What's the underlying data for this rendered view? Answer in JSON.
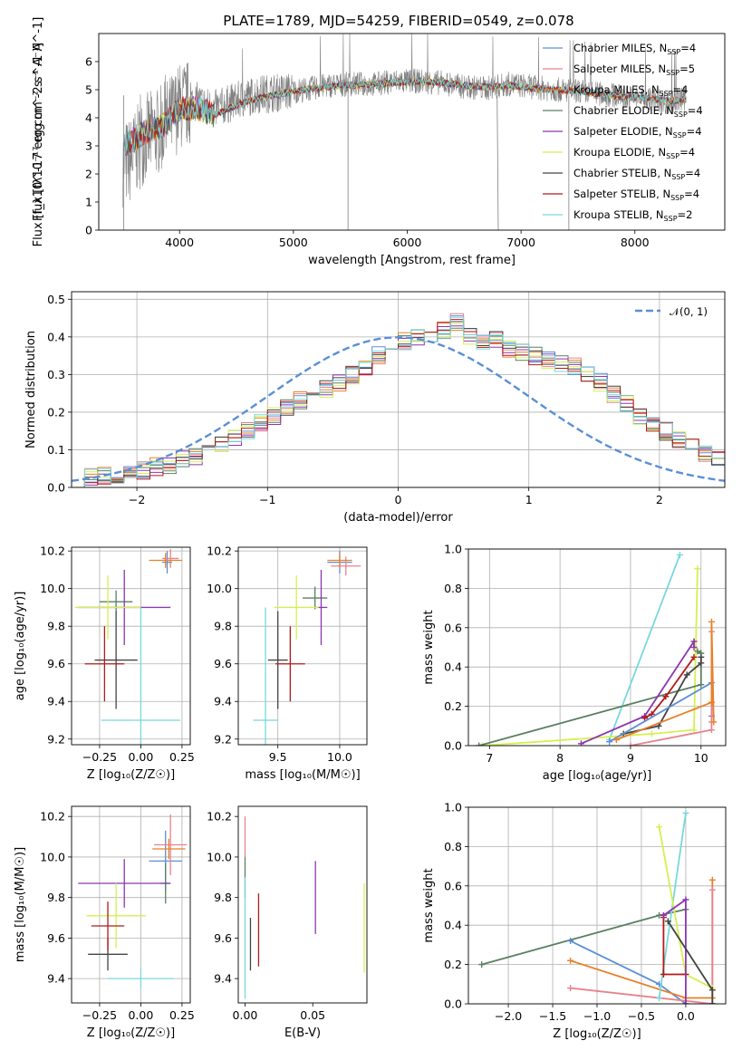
{
  "figure_title": "PLATE=1789, MJD=54259, FIBERID=0549, z=0.078",
  "colors": {
    "chabrier_miles": "#5b8fd6",
    "salpeter_miles": "#e8828c",
    "kroupa_miles": "#e8802a",
    "chabrier_elodie": "#5a8060",
    "salpeter_elodie": "#8e35b0",
    "kroupa_elodie": "#d4f050",
    "chabrier_stelib": "#444444",
    "salpeter_stelib": "#b21a1a",
    "kroupa_stelib": "#78d8dc",
    "data_gray": "#808080"
  },
  "chart_data": [
    {
      "id": "spectrum",
      "type": "line",
      "title": "PLATE=1789, MJD=54259, FIBERID=0549, z=0.078",
      "xlabel": "wavelength [Angstrom, rest frame]",
      "ylabel": "Flux [f_λ10^-17 erg cm^-2 s^-1 A^-1]",
      "xlim": [
        3290,
        8790
      ],
      "ylim": [
        0,
        7
      ],
      "xticks": [
        4000,
        5000,
        6000,
        7000,
        8000
      ],
      "yticks": [
        0,
        1,
        2,
        3,
        4,
        5,
        6
      ],
      "grid": false,
      "legend_position": "top-right",
      "x": [
        3550,
        3700,
        3850,
        4000,
        4150,
        4300,
        4500,
        4700,
        4900,
        5100,
        5300,
        5500,
        5700,
        5900,
        6100,
        6300,
        6500,
        6700,
        6900,
        7100,
        7300,
        7500,
        7700,
        7900,
        8100,
        8300,
        8450
      ],
      "data_flux": [
        2.4,
        3.3,
        3.6,
        4.4,
        4.6,
        4.3,
        4.6,
        4.85,
        4.9,
        5.0,
        5.15,
        5.2,
        5.2,
        5.3,
        5.3,
        5.25,
        5.1,
        5.05,
        5.2,
        5.1,
        5.0,
        4.95,
        4.85,
        4.75,
        4.7,
        4.55,
        4.7
      ],
      "model_flux": [
        3.1,
        3.5,
        3.7,
        4.3,
        4.35,
        4.1,
        4.45,
        4.7,
        4.85,
        5.0,
        5.1,
        5.15,
        5.2,
        5.25,
        5.3,
        5.25,
        5.15,
        5.1,
        5.15,
        5.05,
        5.0,
        4.95,
        4.85,
        4.75,
        4.7,
        4.6,
        4.65
      ],
      "series": [
        {
          "name": "Chabrier MILES, N_SSP=4",
          "label_main": "Chabrier MILES, N",
          "label_sub": "SSP",
          "label_tail": "=4",
          "color_key": "chabrier_miles"
        },
        {
          "name": "Salpeter MILES, N_SSP=5",
          "label_main": "Salpeter MILES, N",
          "label_sub": "SSP",
          "label_tail": "=5",
          "color_key": "salpeter_miles"
        },
        {
          "name": "Kroupa MILES, N_SSP=4",
          "label_main": "Kroupa MILES, N",
          "label_sub": "SSP",
          "label_tail": "=4",
          "color_key": "kroupa_miles"
        },
        {
          "name": "Chabrier ELODIE, N_SSP=4",
          "label_main": "Chabrier ELODIE, N",
          "label_sub": "SSP",
          "label_tail": "=4",
          "color_key": "chabrier_elodie"
        },
        {
          "name": "Salpeter ELODIE, N_SSP=4",
          "label_main": "Salpeter ELODIE, N",
          "label_sub": "SSP",
          "label_tail": "=4",
          "color_key": "salpeter_elodie"
        },
        {
          "name": "Kroupa ELODIE, N_SSP=4",
          "label_main": "Kroupa ELODIE, N",
          "label_sub": "SSP",
          "label_tail": "=4",
          "color_key": "kroupa_elodie"
        },
        {
          "name": "Chabrier STELIB, N_SSP=4",
          "label_main": "Chabrier STELIB, N",
          "label_sub": "SSP",
          "label_tail": "=4",
          "color_key": "chabrier_stelib"
        },
        {
          "name": "Salpeter STELIB, N_SSP=4",
          "label_main": "Salpeter STELIB, N",
          "label_sub": "SSP",
          "label_tail": "=4",
          "color_key": "salpeter_stelib"
        },
        {
          "name": "Kroupa STELIB, N_SSP=2",
          "label_main": "Kroupa STELIB, N",
          "label_sub": "SSP",
          "label_tail": "=2",
          "color_key": "kroupa_stelib"
        }
      ]
    },
    {
      "id": "residuals",
      "type": "line",
      "xlabel": "(data-model)/error",
      "ylabel": "Normed distribution",
      "xlim": [
        -2.5,
        2.5
      ],
      "ylim": [
        0,
        0.52
      ],
      "xticks": [
        -2,
        -1,
        0,
        1,
        2
      ],
      "yticks": [
        0.0,
        0.1,
        0.2,
        0.3,
        0.4,
        0.5
      ],
      "grid": true,
      "legend_position": "top-right",
      "legend_label": "𝒩(0, 1)",
      "gaussian_color": "#5b8fd6",
      "bin_width": 0.1,
      "bin_start": -2.5,
      "hist": [
        0.02,
        0.025,
        0.03,
        0.035,
        0.04,
        0.045,
        0.055,
        0.06,
        0.075,
        0.085,
        0.1,
        0.11,
        0.13,
        0.15,
        0.17,
        0.19,
        0.21,
        0.23,
        0.24,
        0.26,
        0.28,
        0.3,
        0.32,
        0.35,
        0.37,
        0.39,
        0.4,
        0.41,
        0.42,
        0.44,
        0.4,
        0.38,
        0.39,
        0.37,
        0.36,
        0.35,
        0.34,
        0.33,
        0.32,
        0.3,
        0.28,
        0.25,
        0.22,
        0.19,
        0.17,
        0.15,
        0.13,
        0.11,
        0.09,
        0.08,
        0.07,
        0.06,
        0.05,
        0.045,
        0.04,
        0.035,
        0.03,
        0.03,
        0.025,
        0.02
      ]
    },
    {
      "id": "age_vs_Z",
      "type": "scatter",
      "xlabel": "Z [log10(Z/Z☉)]",
      "ylabel": "age [log10(age/yr)]",
      "xlim": [
        -0.42,
        0.3
      ],
      "ylim": [
        9.17,
        10.22
      ],
      "xticks": [
        -0.25,
        0.0,
        0.25
      ],
      "yticks": [
        9.2,
        9.4,
        9.6,
        9.8,
        10.0,
        10.2
      ],
      "grid": true,
      "points": [
        {
          "color_key": "chabrier_miles",
          "x": 0.16,
          "y": 10.14,
          "xerr": 0.03,
          "yerr": 0.06
        },
        {
          "color_key": "salpeter_miles",
          "x": 0.18,
          "y": 10.16,
          "xerr": 0.05,
          "yerr": 0.05
        },
        {
          "color_key": "kroupa_miles",
          "x": 0.15,
          "y": 10.15,
          "xerr": 0.1,
          "yerr": 0.04
        },
        {
          "color_key": "chabrier_elodie",
          "x": -0.15,
          "y": 9.93,
          "xerr": 0.1,
          "yerr": 0.06
        },
        {
          "color_key": "salpeter_elodie",
          "x": -0.1,
          "y": 9.9,
          "xerr": 0.28,
          "yerr": 0.2
        },
        {
          "color_key": "kroupa_elodie",
          "x": -0.2,
          "y": 9.9,
          "xerr": 0.2,
          "yerr": 0.17
        },
        {
          "color_key": "chabrier_stelib",
          "x": -0.15,
          "y": 9.62,
          "xerr": 0.13,
          "yerr": 0.26
        },
        {
          "color_key": "salpeter_stelib",
          "x": -0.22,
          "y": 9.6,
          "xerr": 0.12,
          "yerr": 0.2
        },
        {
          "color_key": "kroupa_stelib",
          "x": 0.0,
          "y": 9.3,
          "xerr": 0.24,
          "yerr": 0.6
        }
      ]
    },
    {
      "id": "age_vs_mass",
      "type": "scatter",
      "xlabel": "mass [log10(M/M☉)]",
      "ylabel": "",
      "xlim": [
        9.18,
        10.22
      ],
      "ylim": [
        9.17,
        10.22
      ],
      "xticks": [
        9.5,
        10.0
      ],
      "yticks": [
        9.2,
        9.4,
        9.6,
        9.8,
        10.0,
        10.2
      ],
      "grid": true,
      "points": [
        {
          "color_key": "chabrier_miles",
          "x": 10.0,
          "y": 10.14,
          "xerr": 0.1,
          "yerr": 0.06
        },
        {
          "color_key": "salpeter_miles",
          "x": 10.05,
          "y": 10.12,
          "xerr": 0.12,
          "yerr": 0.05
        },
        {
          "color_key": "kroupa_miles",
          "x": 10.0,
          "y": 10.15,
          "xerr": 0.1,
          "yerr": 0.04
        },
        {
          "color_key": "chabrier_elodie",
          "x": 9.8,
          "y": 9.95,
          "xerr": 0.1,
          "yerr": 0.06
        },
        {
          "color_key": "salpeter_elodie",
          "x": 9.85,
          "y": 9.9,
          "xerr": 0.05,
          "yerr": 0.2
        },
        {
          "color_key": "kroupa_elodie",
          "x": 9.65,
          "y": 9.9,
          "xerr": 0.18,
          "yerr": 0.17
        },
        {
          "color_key": "chabrier_stelib",
          "x": 9.5,
          "y": 9.62,
          "xerr": 0.08,
          "yerr": 0.26
        },
        {
          "color_key": "salpeter_stelib",
          "x": 9.6,
          "y": 9.6,
          "xerr": 0.12,
          "yerr": 0.2
        },
        {
          "color_key": "kroupa_stelib",
          "x": 9.4,
          "y": 9.3,
          "xerr": 0.1,
          "yerr": 0.6
        }
      ]
    },
    {
      "id": "massweight_vs_age",
      "type": "line",
      "xlabel": "age [log10(age/yr)]",
      "ylabel": "mass weight",
      "xlim": [
        6.7,
        10.35
      ],
      "ylim": [
        0,
        1.0
      ],
      "xticks": [
        7,
        8,
        9,
        10
      ],
      "yticks": [
        0.0,
        0.2,
        0.4,
        0.6,
        0.8,
        1.0
      ],
      "grid": true,
      "series": [
        {
          "color_key": "kroupa_stelib",
          "x": [
            8.7,
            9.7
          ],
          "y": [
            0.03,
            0.97
          ]
        },
        {
          "color_key": "kroupa_elodie",
          "x": [
            6.9,
            9.3,
            9.9,
            9.95
          ],
          "y": [
            0.0,
            0.06,
            0.08,
            0.9
          ]
        },
        {
          "color_key": "chabrier_elodie",
          "x": [
            6.85,
            10.0,
            10.0,
            9.95
          ],
          "y": [
            0.0,
            0.31,
            0.47,
            0.48
          ]
        },
        {
          "color_key": "chabrier_stelib",
          "x": [
            8.9,
            9.4,
            9.8,
            10.0,
            10.0
          ],
          "y": [
            0.06,
            0.1,
            0.36,
            0.42,
            0.45
          ]
        },
        {
          "color_key": "salpeter_elodie",
          "x": [
            8.3,
            9.2,
            9.9,
            9.9
          ],
          "y": [
            0.01,
            0.15,
            0.53,
            0.5
          ]
        },
        {
          "color_key": "salpeter_stelib",
          "x": [
            9.2,
            9.3,
            9.5,
            9.9
          ],
          "y": [
            0.14,
            0.16,
            0.25,
            0.45
          ]
        },
        {
          "color_key": "chabrier_miles",
          "x": [
            8.7,
            10.15,
            10.15
          ],
          "y": [
            0.02,
            0.32,
            0.15
          ]
        },
        {
          "color_key": "salpeter_miles",
          "x": [
            9.0,
            10.15,
            10.15,
            10.15
          ],
          "y": [
            0.0,
            0.08,
            0.58,
            0.12
          ]
        },
        {
          "color_key": "kroupa_miles",
          "x": [
            8.8,
            10.15,
            10.15,
            10.18
          ],
          "y": [
            0.03,
            0.22,
            0.63,
            0.12
          ]
        }
      ]
    },
    {
      "id": "mass_vs_Z",
      "type": "scatter",
      "xlabel": "Z [log10(Z/Z☉)]",
      "ylabel": "mass [log10(M/M☉)]",
      "xlim": [
        -0.42,
        0.3
      ],
      "ylim": [
        9.28,
        10.25
      ],
      "xticks": [
        -0.25,
        0.0,
        0.25
      ],
      "yticks": [
        9.4,
        9.6,
        9.8,
        10.0,
        10.2
      ],
      "grid": true,
      "points": [
        {
          "color_key": "chabrier_miles",
          "x": 0.15,
          "y": 9.98,
          "xerr": 0.1,
          "yerr": 0.15
        },
        {
          "color_key": "salpeter_miles",
          "x": 0.18,
          "y": 10.06,
          "xerr": 0.1,
          "yerr": 0.15
        },
        {
          "color_key": "kroupa_miles",
          "x": 0.17,
          "y": 10.04,
          "xerr": 0.1,
          "yerr": 0.05
        },
        {
          "color_key": "chabrier_elodie",
          "x": 0.15,
          "y": 9.87,
          "xerr": 0.03,
          "yerr": 0.1
        },
        {
          "color_key": "salpeter_elodie",
          "x": -0.1,
          "y": 9.87,
          "xerr": 0.28,
          "yerr": 0.12
        },
        {
          "color_key": "kroupa_elodie",
          "x": -0.15,
          "y": 9.71,
          "xerr": 0.18,
          "yerr": 0.16
        },
        {
          "color_key": "chabrier_stelib",
          "x": -0.2,
          "y": 9.52,
          "xerr": 0.12,
          "yerr": 0.08
        },
        {
          "color_key": "salpeter_stelib",
          "x": -0.2,
          "y": 9.66,
          "xerr": 0.1,
          "yerr": 0.12
        },
        {
          "color_key": "kroupa_stelib",
          "x": 0.0,
          "y": 9.4,
          "xerr": 0.2,
          "yerr": 0.05
        }
      ]
    },
    {
      "id": "mass_vs_ebv",
      "type": "scatter",
      "xlabel": "E(B-V)",
      "ylabel": "",
      "xlim": [
        -0.005,
        0.09
      ],
      "ylim": [
        9.28,
        10.25
      ],
      "xticks": [
        0.0,
        0.05
      ],
      "xtick_labels": [
        "0.00",
        "0.05"
      ],
      "yticks": [
        9.4,
        9.6,
        9.8,
        10.0,
        10.2
      ],
      "grid": false,
      "points": [
        {
          "color_key": "salpeter_miles",
          "x": 0.0,
          "y": 10.1,
          "yerr": 0.1
        },
        {
          "color_key": "chabrier_elodie",
          "x": 0.0,
          "y": 9.9,
          "yerr": 0.1
        },
        {
          "color_key": "kroupa_stelib",
          "x": 0.0,
          "y": 9.6,
          "yerr": 0.3
        },
        {
          "color_key": "chabrier_stelib",
          "x": 0.004,
          "y": 9.57,
          "yerr": 0.13
        },
        {
          "color_key": "salpeter_stelib",
          "x": 0.01,
          "y": 9.64,
          "yerr": 0.18
        },
        {
          "color_key": "salpeter_elodie",
          "x": 0.052,
          "y": 9.8,
          "yerr": 0.18
        },
        {
          "color_key": "kroupa_elodie",
          "x": 0.088,
          "y": 9.65,
          "yerr": 0.22
        }
      ]
    },
    {
      "id": "massweight_vs_Z",
      "type": "line",
      "xlabel": "Z [log10(Z/Z☉)]",
      "ylabel": "mass weight",
      "xlim": [
        -2.45,
        0.45
      ],
      "ylim": [
        0,
        1.0
      ],
      "xticks": [
        -2.0,
        -1.5,
        -1.0,
        -0.5,
        0.0
      ],
      "yticks": [
        0.0,
        0.2,
        0.4,
        0.6,
        0.8,
        1.0
      ],
      "grid": true,
      "series": [
        {
          "color_key": "chabrier_elodie",
          "x": [
            -2.3,
            -0.3,
            0.0
          ],
          "y": [
            0.2,
            0.45,
            0.48
          ]
        },
        {
          "color_key": "chabrier_miles",
          "x": [
            -1.3,
            -0.3,
            0.0
          ],
          "y": [
            0.32,
            0.1,
            0.0
          ]
        },
        {
          "color_key": "kroupa_miles",
          "x": [
            -1.3,
            0.0,
            0.3,
            0.3
          ],
          "y": [
            0.22,
            0.03,
            0.03,
            0.63
          ]
        },
        {
          "color_key": "salpeter_miles",
          "x": [
            -1.3,
            0.3,
            0.3
          ],
          "y": [
            0.08,
            0.0,
            0.58
          ]
        },
        {
          "color_key": "kroupa_stelib",
          "x": [
            -0.3,
            0.0
          ],
          "y": [
            0.03,
            0.97
          ]
        },
        {
          "color_key": "kroupa_elodie",
          "x": [
            -0.3,
            0.0,
            0.3
          ],
          "y": [
            0.9,
            0.15,
            0.08
          ]
        },
        {
          "color_key": "salpeter_stelib",
          "x": [
            -0.25,
            -0.25,
            0.0
          ],
          "y": [
            0.44,
            0.15,
            0.15
          ]
        },
        {
          "color_key": "salpeter_elodie",
          "x": [
            -0.25,
            0.0,
            0.0
          ],
          "y": [
            0.45,
            0.53,
            0.0
          ]
        },
        {
          "color_key": "chabrier_stelib",
          "x": [
            -0.2,
            0.3,
            0.3
          ],
          "y": [
            0.42,
            0.07,
            0.0
          ]
        }
      ]
    }
  ]
}
